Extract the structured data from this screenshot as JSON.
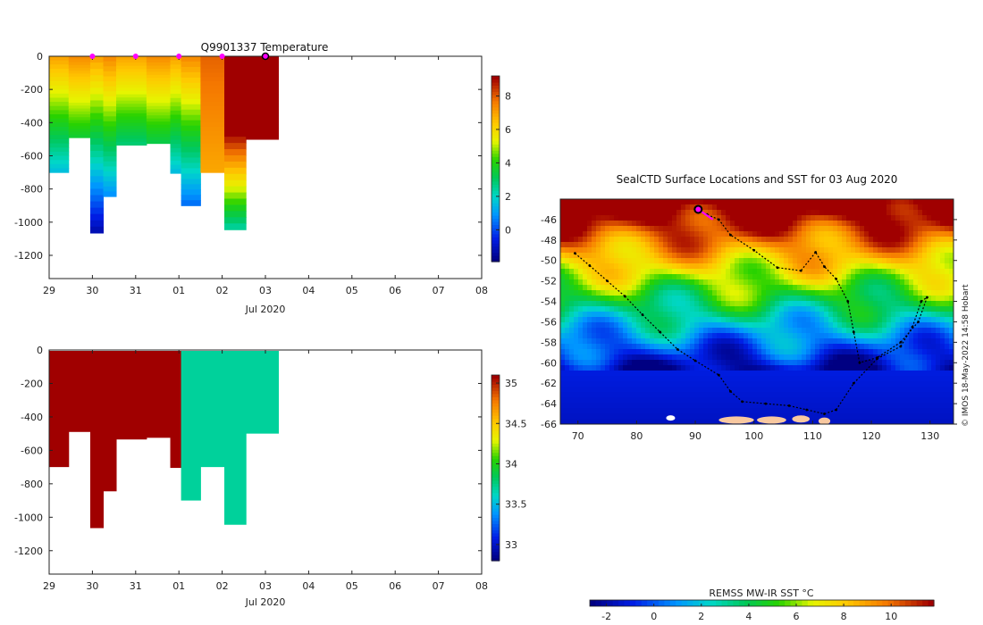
{
  "chart_data": [
    {
      "type": "heatmap",
      "title": "Q9901337  Temperature",
      "xlabel": "Jul 2020",
      "ylabel": "",
      "x_ticks": [
        "29",
        "30",
        "31",
        "01",
        "02",
        "03",
        "04",
        "05",
        "06",
        "07",
        "08"
      ],
      "y_ticks": [
        "0",
        "-200",
        "-400",
        "-600",
        "-800",
        "-1000",
        "-1200"
      ],
      "ylim": [
        -1340,
        0
      ],
      "colorbar": {
        "ticks": [
          "0",
          "2",
          "4",
          "6",
          "8"
        ],
        "range": [
          -1.9,
          9.2
        ]
      },
      "surfacing_markers_day": [
        1.0,
        2.0,
        3.0,
        4.0
      ],
      "current_marker_day": 5.0,
      "profiles": [
        {
          "start_day": 0.0,
          "end_day": 0.45,
          "max_depth": -700
        },
        {
          "start_day": 0.45,
          "end_day": 0.95,
          "max_depth": -490
        },
        {
          "start_day": 0.95,
          "end_day": 1.25,
          "max_depth": -1065
        },
        {
          "start_day": 1.25,
          "end_day": 1.55,
          "max_depth": -845
        },
        {
          "start_day": 1.55,
          "end_day": 2.25,
          "max_depth": -535
        },
        {
          "start_day": 2.25,
          "end_day": 2.8,
          "max_depth": -525
        },
        {
          "start_day": 2.8,
          "end_day": 3.05,
          "max_depth": -705
        },
        {
          "start_day": 3.05,
          "end_day": 3.5,
          "max_depth": -900
        },
        {
          "start_day": 3.5,
          "end_day": 4.05,
          "max_depth": -700
        },
        {
          "start_day": 4.05,
          "end_day": 4.55,
          "max_depth": -1045
        },
        {
          "start_day": 4.55,
          "end_day": 5.3,
          "max_depth": -500
        }
      ]
    },
    {
      "type": "heatmap",
      "title": "",
      "xlabel": "Jul 2020",
      "ylabel": "",
      "x_ticks": [
        "29",
        "30",
        "31",
        "01",
        "02",
        "03",
        "04",
        "05",
        "06",
        "07",
        "08"
      ],
      "y_ticks": [
        "0",
        "-200",
        "-400",
        "-600",
        "-800",
        "-1000",
        "-1200"
      ],
      "ylim": [
        -1340,
        0
      ],
      "colorbar": {
        "ticks": [
          "33",
          "33.5",
          "34",
          "34.5",
          "35"
        ],
        "range": [
          32.8,
          35.1
        ]
      },
      "profiles": [
        {
          "start_day": 0.0,
          "end_day": 0.45,
          "max_depth": -700,
          "value": 35.1
        },
        {
          "start_day": 0.45,
          "end_day": 0.95,
          "max_depth": -490,
          "value": 35.1
        },
        {
          "start_day": 0.95,
          "end_day": 1.25,
          "max_depth": -1065,
          "value": 35.1
        },
        {
          "start_day": 1.25,
          "end_day": 1.55,
          "max_depth": -845,
          "value": 35.1
        },
        {
          "start_day": 1.55,
          "end_day": 2.25,
          "max_depth": -535,
          "value": 35.1
        },
        {
          "start_day": 2.25,
          "end_day": 2.8,
          "max_depth": -525,
          "value": 35.1
        },
        {
          "start_day": 2.8,
          "end_day": 3.05,
          "max_depth": -705,
          "value": 35.1
        },
        {
          "start_day": 3.05,
          "end_day": 3.5,
          "max_depth": -900,
          "value": 33.7
        },
        {
          "start_day": 3.5,
          "end_day": 4.05,
          "max_depth": -700,
          "value": 33.7
        },
        {
          "start_day": 4.05,
          "end_day": 4.55,
          "max_depth": -1045,
          "value": 33.7
        },
        {
          "start_day": 4.55,
          "end_day": 5.3,
          "max_depth": -500,
          "value": 33.7
        }
      ]
    },
    {
      "type": "scatter",
      "title": "SealCTD Surface Locations and SST for 03 Aug 2020",
      "xlabel": "",
      "ylabel": "",
      "xlim": [
        67,
        134
      ],
      "ylim": [
        -66,
        -44
      ],
      "x_ticks": [
        "70",
        "80",
        "90",
        "100",
        "110",
        "120",
        "130"
      ],
      "y_ticks": [
        "-46",
        "-48",
        "-50",
        "-52",
        "-54",
        "-56",
        "-58",
        "-60",
        "-62",
        "-64",
        "-66"
      ],
      "track": [
        [
          69.5,
          -49.3
        ],
        [
          72,
          -50.5
        ],
        [
          75,
          -52
        ],
        [
          78,
          -53.5
        ],
        [
          81,
          -55.3
        ],
        [
          84,
          -57
        ],
        [
          87,
          -58.7
        ],
        [
          90,
          -59.8
        ],
        [
          94,
          -61.2
        ],
        [
          96,
          -62.8
        ],
        [
          98,
          -63.8
        ],
        [
          102,
          -64
        ],
        [
          106,
          -64.2
        ],
        [
          109,
          -64.6
        ],
        [
          112,
          -65
        ],
        [
          114,
          -64.6
        ],
        [
          117,
          -62
        ],
        [
          121,
          -59.6
        ],
        [
          125,
          -58.4
        ],
        [
          127,
          -56.5
        ],
        [
          128.5,
          -54
        ],
        [
          129.5,
          -53.6
        ],
        [
          128,
          -56
        ],
        [
          125,
          -58
        ],
        [
          121,
          -59.5
        ],
        [
          118,
          -60
        ],
        [
          117,
          -57
        ],
        [
          116,
          -54
        ],
        [
          114,
          -51.8
        ],
        [
          112,
          -50.6
        ],
        [
          110.5,
          -49.2
        ],
        [
          108,
          -51
        ],
        [
          104,
          -50.7
        ],
        [
          100,
          -49
        ],
        [
          96,
          -47.5
        ],
        [
          94,
          -46
        ],
        [
          92,
          -45.5
        ],
        [
          91,
          -45.2
        ]
      ],
      "recent_track": [
        [
          90.5,
          -45
        ],
        [
          93,
          -46
        ]
      ],
      "current_position": [
        90.5,
        -45
      ],
      "credit": "© IMOS 18-May-2022 14:58 Hobart",
      "colorbar": {
        "label": "REMSS MW-IR SST °C",
        "ticks": [
          "-2",
          "0",
          "2",
          "4",
          "6",
          "8",
          "10"
        ],
        "range": [
          -2.7,
          11.8
        ]
      }
    }
  ]
}
